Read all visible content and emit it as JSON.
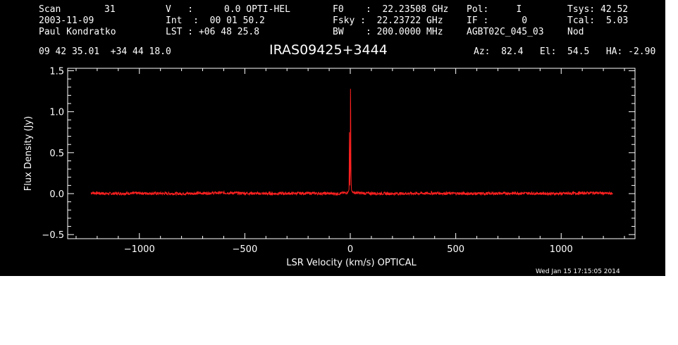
{
  "header": {
    "col1": {
      "scan_label": "Scan",
      "scan_value": "31",
      "date": "2003-11-09",
      "observer": "Paul Kondratko"
    },
    "col2": {
      "v_label": "V   :",
      "v_value": "0.0 OPTI-HEL",
      "int": "Int  :  00 01 50.2",
      "lst": "LST : +06 48 25.8"
    },
    "col3": {
      "f0": "F0    :  22.23508 GHz",
      "fsky": "Fsky :  22.23722 GHz",
      "bw": "BW    : 200.0000 MHz"
    },
    "col4": {
      "pol": "Pol:     I",
      "if": "IF :      0",
      "project": "AGBT02C_045_03"
    },
    "col5": {
      "tsys_label": "Tsys:",
      "tsys_value": "42.52",
      "tcal_label": "Tcal:",
      "tcal_value": "5.03",
      "mode": "Nod"
    },
    "coords": "09 42 35.01  +34 44 18.0",
    "source": "IRAS09425+3444",
    "pointing": "Az:  82.4   El:  54.5   HA: -2.90",
    "timestamp": "Wed Jan 15 17:15:05 2014"
  },
  "colors": {
    "background": "#000000",
    "axes": "#ffffff",
    "trace": "#ff2020"
  },
  "chart_data": {
    "type": "line",
    "xlabel": "LSR Velocity (km/s) OPTICAL",
    "ylabel": "Flux Density (Jy)",
    "xlim": [
      -1340,
      1350
    ],
    "ylim": [
      -0.55,
      1.53
    ],
    "xticks": [
      -1000,
      -500,
      0,
      500,
      1000
    ],
    "yticks": [
      -0.5,
      0.0,
      0.5,
      1.0,
      1.5
    ],
    "xtick_labels": [
      "−1000",
      "−500",
      "0",
      "500",
      "1000"
    ],
    "ytick_labels": [
      "−0.5",
      "0.0",
      "0.5",
      "1.0",
      "1.5"
    ],
    "series": [
      {
        "x": [
          -1230,
          -1150,
          -1000,
          -800,
          -600,
          -400,
          -200,
          -60,
          -20,
          -10,
          -6,
          -4,
          -2,
          0,
          1,
          2,
          3,
          4,
          6,
          10,
          20,
          60,
          200,
          400,
          600,
          800,
          1000,
          1150,
          1245
        ],
        "y": [
          0.01,
          0.0,
          0.005,
          0.0,
          0.01,
          0.0,
          0.005,
          0.0,
          0.01,
          0.02,
          0.05,
          0.75,
          0.1,
          0.3,
          1.28,
          1.0,
          0.4,
          0.12,
          0.04,
          0.02,
          0.01,
          0.005,
          0.0,
          0.005,
          0.0,
          0.005,
          0.0,
          0.01,
          0.0
        ]
      }
    ],
    "grid": false,
    "legend": "none"
  }
}
